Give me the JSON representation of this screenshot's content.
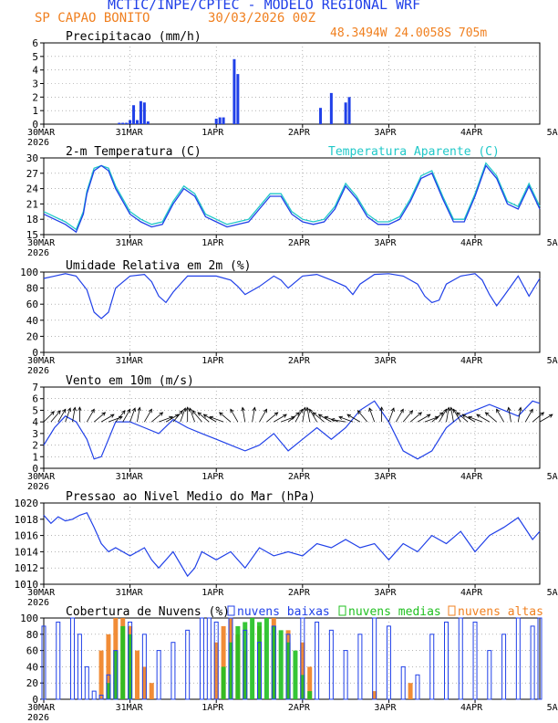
{
  "header": {
    "title": "MCTIC/INPE/CPTEC - MODELO REGIONAL WRF",
    "station": "SP CAPAO BONITO",
    "run": "30/03/2026 00Z",
    "coords": "48.3494W 24.0058S 705m"
  },
  "colors": {
    "blue": "#2040e8",
    "cyan": "#20c8c8",
    "orange": "#f08020",
    "green": "#20c020",
    "black": "#000000"
  },
  "chart_data": [
    {
      "id": "precip",
      "type": "bar",
      "title": "Precipitacao (mm/h)",
      "ylim": [
        0,
        6
      ],
      "yticks": [
        0,
        1,
        2,
        3,
        4,
        5,
        6
      ],
      "x_tick_labels": [
        "30MAR",
        "31MAR",
        "1APR",
        "2APR",
        "3APR",
        "4APR",
        "5APR"
      ],
      "x_year": "2026",
      "hours": [
        21,
        22,
        23,
        24,
        25,
        26,
        27,
        28,
        29,
        30,
        31,
        32,
        48,
        49,
        50,
        51,
        52,
        53,
        54,
        77,
        78,
        79,
        80,
        81,
        82,
        83,
        84,
        85,
        86,
        87,
        88,
        89,
        90,
        91,
        92,
        93,
        94,
        95,
        96,
        97,
        98,
        99,
        100,
        101,
        102,
        103,
        104,
        105,
        106,
        107,
        108,
        109,
        110,
        111,
        112,
        113,
        114,
        115,
        116,
        117,
        118,
        119,
        120,
        121,
        122,
        123,
        124,
        125,
        126,
        127,
        128,
        129,
        130,
        131,
        132,
        133,
        134,
        135,
        136
      ],
      "values": [
        0.1,
        0.1,
        0.1,
        0.3,
        1.4,
        0.3,
        1.7,
        1.6,
        0.2,
        0.0,
        0.0,
        0.0,
        0.4,
        0.5,
        0.5,
        0.0,
        0.0,
        4.8,
        3.7,
        1.2,
        0.0,
        0.0,
        2.3,
        0.0,
        0.0,
        0.0,
        1.6,
        2.0,
        0.0,
        0.0,
        0.0,
        0.0,
        0.0,
        0.0,
        0.0,
        0.0,
        0.0,
        0.0,
        0.0,
        0.0,
        0.0,
        0.0,
        0.0,
        0.0,
        0.0,
        0.0,
        0.0,
        0.0,
        0.0,
        0.0,
        0.0,
        0.0,
        0.0,
        0.0,
        0.0,
        0.0,
        0.0,
        0.0,
        0.0,
        0.0,
        0.0,
        0.0,
        0.0,
        0.0,
        0.0,
        0.0,
        0.0,
        0.0,
        0.0,
        0.0,
        0.0,
        0.0,
        0.0,
        0.0,
        0.0,
        0.0,
        0.0,
        0.0,
        0.0
      ]
    },
    {
      "id": "temperature",
      "type": "line",
      "title": "2-m Temperatura (C)",
      "legend_extra": "Temperatura Aparente (C)",
      "ylim": [
        15,
        30
      ],
      "yticks": [
        15,
        18,
        21,
        24,
        27,
        30
      ],
      "x_tick_labels": [
        "30MAR",
        "31MAR",
        "1APR",
        "2APR",
        "3APR",
        "4APR",
        "5APR"
      ],
      "x_year": "2026",
      "series": [
        {
          "name": "2-m Temperatura",
          "color": "blue",
          "x": [
            0,
            3,
            6,
            9,
            11,
            12,
            14,
            16,
            18,
            20,
            24,
            27,
            30,
            33,
            36,
            39,
            42,
            45,
            48,
            51,
            54,
            57,
            60,
            63,
            66,
            69,
            72,
            75,
            78,
            81,
            84,
            87,
            90,
            93,
            96,
            99,
            102,
            105,
            108,
            111,
            114,
            117,
            120,
            123,
            126,
            129,
            132,
            135,
            138
          ],
          "y": [
            19,
            18,
            17,
            15.5,
            19,
            23,
            27.5,
            28.5,
            27.5,
            24,
            19,
            17.5,
            16.5,
            17,
            21,
            24,
            22.5,
            18.5,
            17.5,
            16.5,
            17,
            17.5,
            20,
            22.5,
            22.5,
            19,
            17.5,
            17,
            17.5,
            20,
            24.5,
            22,
            18.5,
            17,
            17,
            18,
            21.5,
            26,
            27,
            22,
            17.5,
            17.5,
            22.5,
            28.5,
            26,
            21,
            20,
            24.5,
            20
          ]
        },
        {
          "name": "Temperatura Aparente",
          "color": "cyan",
          "x": [
            0,
            3,
            6,
            9,
            11,
            12,
            14,
            16,
            18,
            20,
            24,
            27,
            30,
            33,
            36,
            39,
            42,
            45,
            48,
            51,
            54,
            57,
            60,
            63,
            66,
            69,
            72,
            75,
            78,
            81,
            84,
            87,
            90,
            93,
            96,
            99,
            102,
            105,
            108,
            111,
            114,
            117,
            120,
            123,
            126,
            129,
            132,
            135,
            138
          ],
          "y": [
            19.5,
            18.5,
            17.5,
            16,
            19.5,
            23.5,
            28,
            28.5,
            28,
            24.5,
            19.5,
            18,
            17,
            17.5,
            21.5,
            24.5,
            23,
            19,
            18,
            17,
            17.5,
            18,
            20.5,
            23,
            23,
            19.5,
            18,
            17.5,
            18,
            20.5,
            25,
            22.5,
            19,
            17.5,
            17.5,
            18.5,
            22,
            26.5,
            27.5,
            22.5,
            18,
            18,
            23,
            29,
            26.5,
            21.5,
            20.5,
            25,
            20.5
          ]
        }
      ]
    },
    {
      "id": "humidity",
      "type": "line",
      "title": "Umidade Relativa em 2m (%)",
      "ylim": [
        0,
        100
      ],
      "yticks": [
        0,
        20,
        40,
        60,
        80,
        100
      ],
      "x_tick_labels": [
        "30MAR",
        "31MAR",
        "1APR",
        "2APR",
        "3APR",
        "4APR",
        "5APR"
      ],
      "x_year": "2026",
      "series": [
        {
          "name": "Umidade Relativa",
          "color": "blue",
          "x": [
            0,
            3,
            6,
            9,
            12,
            14,
            16,
            18,
            20,
            24,
            28,
            30,
            32,
            34,
            36,
            40,
            44,
            48,
            52,
            54,
            56,
            60,
            64,
            66,
            68,
            72,
            76,
            80,
            84,
            86,
            88,
            92,
            96,
            100,
            104,
            106,
            108,
            110,
            112,
            116,
            120,
            122,
            124,
            126,
            128,
            132,
            135,
            138
          ],
          "y": [
            92,
            95,
            98,
            95,
            78,
            50,
            42,
            50,
            80,
            95,
            97,
            88,
            70,
            62,
            75,
            95,
            95,
            95,
            90,
            82,
            72,
            82,
            95,
            90,
            80,
            95,
            97,
            90,
            82,
            72,
            85,
            97,
            98,
            95,
            85,
            70,
            62,
            65,
            85,
            95,
            98,
            90,
            72,
            58,
            70,
            95,
            70,
            92
          ]
        }
      ]
    },
    {
      "id": "wind",
      "type": "line",
      "title": "Vento em 10m (m/s)",
      "ylim": [
        0,
        7
      ],
      "yticks": [
        0,
        1,
        2,
        3,
        4,
        5,
        6,
        7
      ],
      "x_tick_labels": [
        "30MAR",
        "31MAR",
        "1APR",
        "2APR",
        "3APR",
        "4APR",
        "5APR"
      ],
      "x_year": "2026",
      "arrow_baseline": 4,
      "series": [
        {
          "name": "Vento 10m",
          "color": "blue",
          "x": [
            0,
            3,
            6,
            9,
            12,
            14,
            16,
            18,
            20,
            24,
            28,
            32,
            36,
            40,
            44,
            48,
            52,
            56,
            60,
            64,
            68,
            72,
            76,
            80,
            84,
            88,
            92,
            96,
            100,
            104,
            108,
            112,
            116,
            120,
            124,
            128,
            132,
            136,
            138
          ],
          "y": [
            2,
            3.5,
            4.5,
            4,
            2.5,
            0.8,
            1,
            2.5,
            4,
            4,
            3.5,
            3,
            4.2,
            3.5,
            3,
            2.5,
            2,
            1.5,
            2,
            3,
            1.5,
            2.5,
            3.5,
            2.5,
            3.5,
            5,
            5.8,
            4,
            1.5,
            0.8,
            1.5,
            3.5,
            4.5,
            5,
            5.5,
            5,
            4.5,
            5.8,
            5.6
          ]
        }
      ],
      "arrow_dir_deg": [
        315,
        310,
        300,
        290,
        280,
        270,
        300,
        320,
        330,
        340,
        310,
        300,
        290,
        280,
        300,
        320,
        340,
        330,
        310,
        290,
        270,
        250,
        230,
        220,
        210,
        200,
        220,
        240,
        260,
        280,
        300,
        320,
        330,
        340,
        320,
        300,
        280,
        260,
        240,
        220,
        210,
        200,
        190,
        200,
        210,
        230,
        250,
        270,
        290,
        300,
        310,
        320,
        330,
        340,
        320,
        300,
        280,
        260,
        240,
        220,
        210,
        200,
        210,
        220,
        240,
        260,
        280,
        300,
        320,
        330
      ]
    },
    {
      "id": "pressure",
      "type": "line",
      "title": "Pressao ao Nivel Medio do Mar (hPa)",
      "ylim": [
        1010,
        1020
      ],
      "yticks": [
        1010,
        1012,
        1014,
        1016,
        1018,
        1020
      ],
      "x_tick_labels": [
        "30MAR",
        "31MAR",
        "1APR",
        "2APR",
        "3APR",
        "4APR",
        "5APR"
      ],
      "x_year": "2026",
      "series": [
        {
          "name": "Pressao NMM",
          "color": "blue",
          "x": [
            0,
            2,
            4,
            6,
            8,
            10,
            12,
            14,
            16,
            18,
            20,
            24,
            28,
            30,
            32,
            36,
            40,
            42,
            44,
            48,
            52,
            56,
            60,
            64,
            68,
            72,
            76,
            80,
            84,
            88,
            92,
            96,
            100,
            104,
            108,
            112,
            116,
            120,
            124,
            128,
            132,
            136,
            138
          ],
          "y": [
            1018.5,
            1017.5,
            1018.3,
            1017.8,
            1018,
            1018.5,
            1018.8,
            1017,
            1015,
            1014,
            1014.5,
            1013.5,
            1014.5,
            1013,
            1012,
            1014,
            1011,
            1012,
            1014,
            1013,
            1014,
            1012,
            1014.5,
            1013.5,
            1014,
            1013.5,
            1015,
            1014.5,
            1015.5,
            1014.5,
            1015,
            1013,
            1015,
            1014,
            1016,
            1015,
            1016.5,
            1014,
            1016,
            1017,
            1018.2,
            1015.5,
            1016.5
          ]
        }
      ]
    },
    {
      "id": "clouds",
      "type": "bar",
      "title": "Cobertura de Nuvens (%)",
      "legend": [
        "nuvens baixas",
        "nuvens medias",
        "nuvens altas"
      ],
      "ylim": [
        0,
        100
      ],
      "yticks": [
        0,
        20,
        40,
        60,
        80,
        100
      ],
      "x_tick_labels": [
        "30MAR",
        "31MAR",
        "1APR",
        "2APR",
        "3APR",
        "4APR",
        "5APR"
      ],
      "x_year": "2026",
      "series": [
        {
          "name": "nuvens baixas",
          "color": "blue",
          "x": [
            0,
            4,
            8,
            10,
            12,
            14,
            16,
            18,
            20,
            24,
            28,
            32,
            36,
            40,
            44,
            46,
            48,
            52,
            56,
            60,
            64,
            68,
            72,
            76,
            80,
            84,
            88,
            92,
            96,
            100,
            104,
            108,
            112,
            116,
            120,
            124,
            128,
            132,
            136,
            138
          ],
          "values": [
            90,
            95,
            100,
            80,
            40,
            10,
            5,
            30,
            60,
            95,
            80,
            60,
            70,
            85,
            100,
            100,
            95,
            100,
            85,
            70,
            90,
            80,
            100,
            95,
            85,
            60,
            80,
            100,
            90,
            40,
            30,
            80,
            95,
            100,
            95,
            60,
            80,
            100,
            90,
            100
          ]
        },
        {
          "name": "nuvens medias",
          "color": "green",
          "x": [
            14,
            16,
            18,
            20,
            22,
            24,
            50,
            52,
            54,
            56,
            58,
            60,
            62,
            64,
            66,
            68,
            70,
            72,
            74
          ],
          "values": [
            0,
            0,
            20,
            60,
            90,
            80,
            40,
            70,
            90,
            95,
            100,
            95,
            100,
            90,
            85,
            70,
            60,
            30,
            10
          ]
        },
        {
          "name": "nuvens altas",
          "color": "orange",
          "x": [
            16,
            18,
            20,
            22,
            24,
            26,
            28,
            30,
            48,
            50,
            52,
            54,
            56,
            60,
            64,
            68,
            72,
            74,
            92,
            102
          ],
          "values": [
            60,
            80,
            100,
            100,
            90,
            60,
            40,
            20,
            70,
            90,
            100,
            80,
            60,
            90,
            100,
            85,
            70,
            40,
            10,
            20
          ]
        }
      ]
    }
  ]
}
